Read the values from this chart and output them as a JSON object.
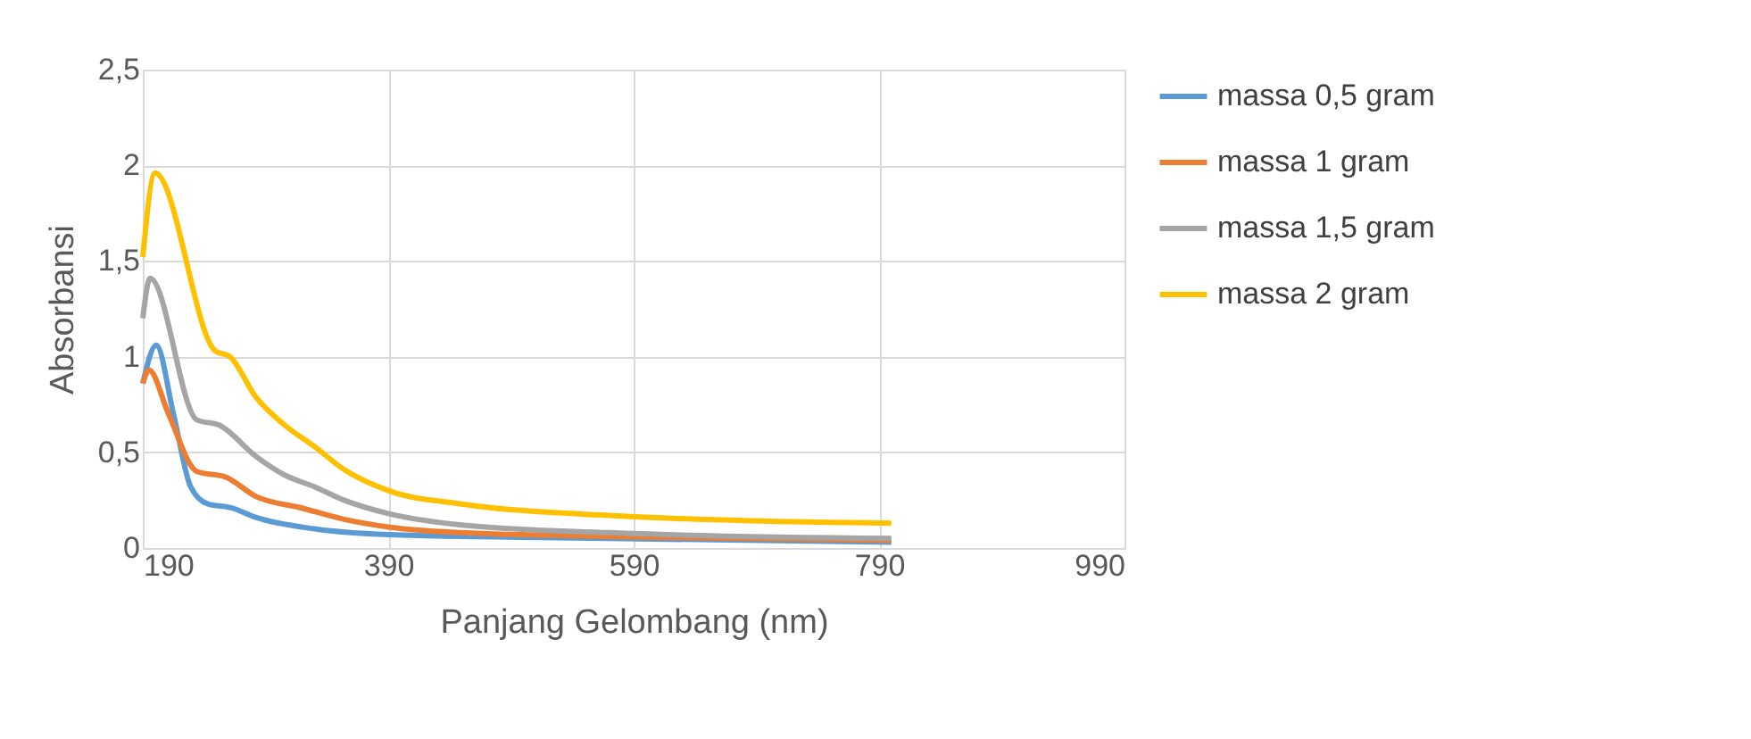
{
  "chart_data": {
    "type": "line",
    "xlabel": "Panjang Gelombang (nm)",
    "ylabel": "Absorbansi",
    "xlim": [
      190,
      990
    ],
    "xticks": [
      190,
      390,
      590,
      790,
      990
    ],
    "ylim": [
      0,
      2.5
    ],
    "yticks": [
      {
        "value": 0,
        "label": "0"
      },
      {
        "value": 0.5,
        "label": "0,5"
      },
      {
        "value": 1,
        "label": "1"
      },
      {
        "value": 1.5,
        "label": "1,5"
      },
      {
        "value": 2,
        "label": "2"
      },
      {
        "value": 2.5,
        "label": "2,5"
      }
    ],
    "grid": true,
    "legend": "right",
    "line_style": "solid",
    "marker": "none",
    "series": [
      {
        "name": "massa 0,5 gram",
        "color": "#5b9bd5",
        "x": [
          190,
          201,
          215,
          229,
          243,
          262,
          282,
          330,
          390,
          570,
          800
        ],
        "values": [
          0.86,
          1.06,
          0.7,
          0.32,
          0.23,
          0.21,
          0.16,
          0.1,
          0.07,
          0.05,
          0.03
        ]
      },
      {
        "name": "massa 1 gram",
        "color": "#ed7d31",
        "x": [
          190,
          195,
          211,
          234,
          258,
          282,
          319,
          354,
          390,
          450,
          570,
          800
        ],
        "values": [
          0.86,
          0.93,
          0.7,
          0.4,
          0.37,
          0.27,
          0.21,
          0.15,
          0.11,
          0.08,
          0.06,
          0.04
        ]
      },
      {
        "name": "massa 1,5 gram",
        "color": "#a5a5a5",
        "x": [
          190,
          196,
          234,
          253,
          282,
          306,
          330,
          354,
          390,
          450,
          570,
          800
        ],
        "values": [
          1.2,
          1.41,
          0.67,
          0.64,
          0.48,
          0.38,
          0.32,
          0.25,
          0.18,
          0.12,
          0.08,
          0.05
        ]
      },
      {
        "name": "massa 2 gram",
        "color": "#ffc000",
        "x": [
          190,
          200,
          249,
          261,
          282,
          306,
          330,
          354,
          390,
          450,
          570,
          800
        ],
        "values": [
          1.52,
          1.96,
          1.03,
          1.0,
          0.79,
          0.64,
          0.53,
          0.41,
          0.3,
          0.23,
          0.17,
          0.13
        ]
      }
    ]
  }
}
